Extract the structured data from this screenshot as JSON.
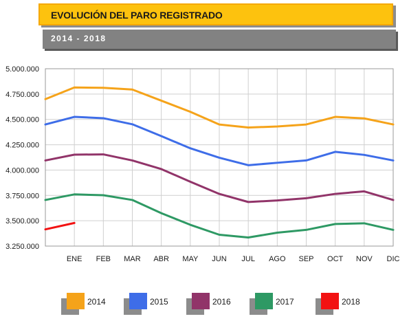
{
  "header": {
    "title": "EVOLUCIÓN DEL PARO REGISTRADO",
    "subtitle": "2014 - 2018"
  },
  "chart_data": {
    "type": "line",
    "categories": [
      "ENE",
      "FEB",
      "MAR",
      "ABR",
      "MAY",
      "JUN",
      "JUL",
      "AGO",
      "SEP",
      "OCT",
      "NOV",
      "DIC"
    ],
    "x_extended_start": true,
    "ylim": [
      3250000,
      5000000
    ],
    "yticks": [
      3250000,
      3500000,
      3750000,
      4000000,
      4250000,
      4500000,
      4750000,
      5000000
    ],
    "ytick_labels": [
      "3.250.000",
      "3.500.000",
      "3.750.000",
      "4.000.000",
      "4.250.000",
      "4.500.000",
      "4.750.000",
      "5.000.000"
    ],
    "grid": true,
    "legend_position": "bottom",
    "series": [
      {
        "name": "2014",
        "color": "#f5a31a",
        "start": 4700000,
        "values": [
          4815000,
          4812000,
          4795000,
          4685000,
          4575000,
          4450000,
          4420000,
          4430000,
          4450000,
          4525000,
          4510000,
          4450000
        ]
      },
      {
        "name": "2015",
        "color": "#3e6de8",
        "start": 4450000,
        "values": [
          4525000,
          4512000,
          4452000,
          4335000,
          4215000,
          4122000,
          4048000,
          4072000,
          4095000,
          4180000,
          4150000,
          4095000
        ]
      },
      {
        "name": "2016",
        "color": "#913469",
        "start": 4095000,
        "values": [
          4152000,
          4155000,
          4095000,
          4010000,
          3885000,
          3765000,
          3685000,
          3700000,
          3722000,
          3765000,
          3790000,
          3705000
        ]
      },
      {
        "name": "2017",
        "color": "#2e9964",
        "start": 3705000,
        "values": [
          3760000,
          3752000,
          3705000,
          3575000,
          3460000,
          3362000,
          3335000,
          3382000,
          3410000,
          3468000,
          3475000,
          3410000
        ]
      },
      {
        "name": "2018",
        "color": "#f21212",
        "start": 3415000,
        "values": [
          3478000,
          null,
          null,
          null,
          null,
          null,
          null,
          null,
          null,
          null,
          null,
          null
        ]
      }
    ]
  }
}
